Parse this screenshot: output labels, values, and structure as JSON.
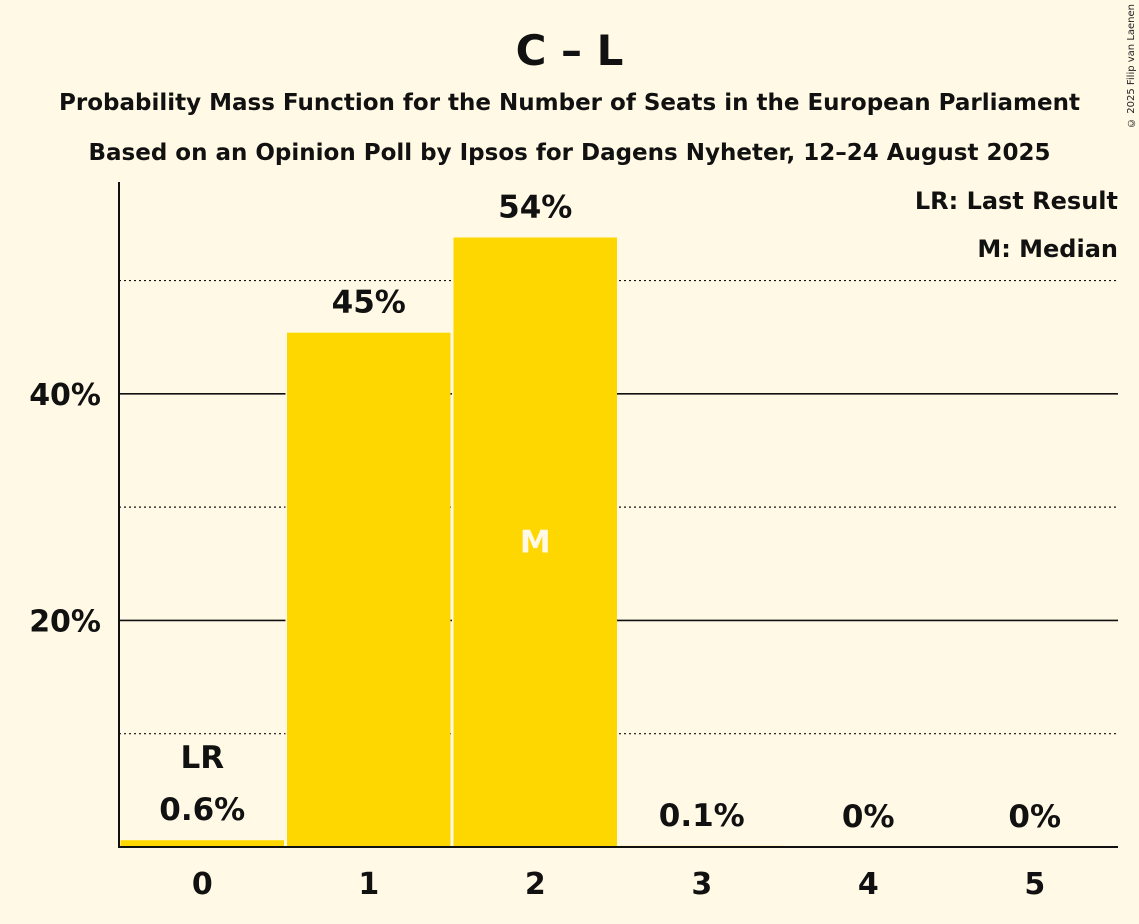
{
  "title": "C – L",
  "subtitle_1": "Probability Mass Function for the Number of Seats in the European Parliament",
  "subtitle_2": "Based on an Opinion Poll by Ipsos for Dagens Nyheter, 12–24 August 2025",
  "copyright": "© 2025 Filip van Laenen",
  "legend": {
    "last_result": "LR: Last Result",
    "median": "M: Median"
  },
  "colors": {
    "background": "#FFF9E5",
    "bar": "#FFD700",
    "text": "#111111",
    "median_marker": "#FFF9E5"
  },
  "chart_data": {
    "type": "bar",
    "title": "C – L",
    "xlabel": "",
    "ylabel": "",
    "categories": [
      "0",
      "1",
      "2",
      "3",
      "4",
      "5"
    ],
    "values": [
      0.6,
      45.4,
      53.8,
      0.1,
      0,
      0
    ],
    "value_labels": [
      "0.6%",
      "45%",
      "54%",
      "0.1%",
      "0%",
      "0%"
    ],
    "ylim": [
      0,
      58.7
    ],
    "yticks": [
      20,
      40
    ],
    "ytick_labels": [
      "20%",
      "40%"
    ],
    "minor_gridlines": [
      10,
      30,
      50
    ],
    "grid": true,
    "last_result_index": 0,
    "last_result_label": "LR",
    "median_index": 2,
    "median_label": "M",
    "legend_position": "top-right"
  }
}
